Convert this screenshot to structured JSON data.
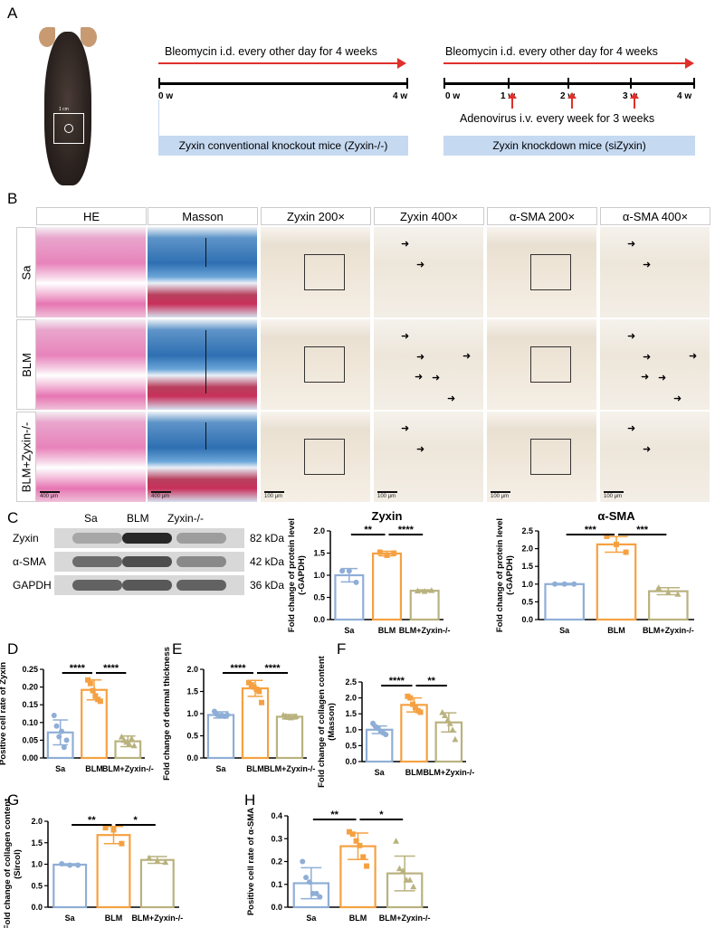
{
  "panels": {
    "a": "A",
    "b": "B",
    "c": "C",
    "d": "D",
    "e": "E",
    "f": "F",
    "g": "G",
    "h": "H"
  },
  "panel_a": {
    "photo_scale": "1 cm",
    "left": {
      "arrow_text": "Bleomycin i.d. every other day for 4 weeks",
      "weeks": [
        "0 w",
        "4 w"
      ],
      "box": "Zyxin conventional knockout mice (Zyxin-/-)"
    },
    "right": {
      "arrow_text": "Bleomycin i.d. every other day for 4 weeks",
      "weeks": [
        "0 w",
        "1 w",
        "2 w",
        "3 w",
        "4 w"
      ],
      "adeno_text": "Adenovirus i.v. every week for 3 weeks",
      "box": "Zyxin  knockdown mice (siZyxin)"
    }
  },
  "panel_b": {
    "columns": [
      "HE",
      "Masson",
      "Zyxin 200×",
      "Zyxin 400×",
      "α-SMA 200×",
      "α-SMA 400×"
    ],
    "rows": [
      "Sa",
      "BLM",
      "BLM+Zyxin-/-"
    ],
    "scale_bars": {
      "he": "400 μm",
      "masson": "400 μm",
      "ihc": "100 μm"
    },
    "colors": {
      "he": "#e783bb",
      "masson": "#2f6fb2",
      "collagen_red": "#c8305a",
      "ihc": "#efe6d8"
    }
  },
  "panel_c_blot": {
    "lanes": [
      "Sa",
      "BLM",
      "Zyxin-/-"
    ],
    "proteins": [
      {
        "name": "Zyxin",
        "kda": "82 kDa"
      },
      {
        "name": "α-SMA",
        "kda": "42 kDa"
      },
      {
        "name": "GAPDH",
        "kda": "36 kDa"
      }
    ]
  },
  "colors": {
    "Sa": "#8faed6",
    "BLM": "#f5a142",
    "BLM+Zyxin-/-": "#b9b27f"
  },
  "chart_data": [
    {
      "id": "C-zyxin",
      "type": "bar",
      "title": "Zyxin",
      "ylabel": [
        "Fold change of protein level",
        "(-GAPDH)"
      ],
      "categories": [
        "Sa",
        "BLM",
        "BLM+Zyxin-/-"
      ],
      "ylim": [
        0,
        2.0
      ],
      "yticks": [
        "0.0",
        "0.5",
        "1.0",
        "1.5",
        "2.0"
      ],
      "means": [
        1.0,
        1.49,
        0.65
      ],
      "sd": [
        0.15,
        0.05,
        0.02
      ],
      "points": [
        [
          1.1,
          1.1,
          0.84
        ],
        [
          1.52,
          1.45,
          1.5
        ],
        [
          0.65,
          0.64,
          0.66
        ]
      ],
      "markers": [
        "circle",
        "square",
        "triangle"
      ],
      "significance": [
        {
          "from": 0,
          "to": 1,
          "label": "**"
        },
        {
          "from": 1,
          "to": 2,
          "label": "****"
        }
      ]
    },
    {
      "id": "C-asma",
      "type": "bar",
      "title": "α-SMA",
      "ylabel": [
        "Fold change of protein level",
        "(-GAPDH)"
      ],
      "categories": [
        "Sa",
        "BLM",
        "BLM+Zyxin-/-"
      ],
      "ylim": [
        0,
        2.5
      ],
      "yticks": [
        "0.0",
        "0.5",
        "1.0",
        "1.5",
        "2.0",
        "2.5"
      ],
      "means": [
        1.0,
        2.12,
        0.8
      ],
      "sd": [
        0.02,
        0.22,
        0.1
      ],
      "points": [
        [
          1.0,
          1.0,
          1.0
        ],
        [
          2.35,
          2.12,
          1.9
        ],
        [
          0.9,
          0.77,
          0.72
        ]
      ],
      "markers": [
        "circle",
        "square",
        "triangle"
      ],
      "significance": [
        {
          "from": 0,
          "to": 1,
          "label": "***"
        },
        {
          "from": 1,
          "to": 2,
          "label": "***"
        }
      ]
    },
    {
      "id": "D",
      "type": "bar",
      "title": "",
      "ylabel": [
        "Positive cell rate of Zyxin"
      ],
      "categories": [
        "Sa",
        "BLM",
        "BLM+Zyxin-/-"
      ],
      "ylim": [
        0,
        0.25
      ],
      "yticks": [
        "0.00",
        "0.05",
        "0.10",
        "0.15",
        "0.20",
        "0.25"
      ],
      "means": [
        0.072,
        0.192,
        0.047
      ],
      "sd": [
        0.035,
        0.028,
        0.015
      ],
      "points": [
        [
          0.12,
          0.09,
          0.06,
          0.075,
          0.03,
          0.05
        ],
        [
          0.22,
          0.21,
          0.19,
          0.175,
          0.165,
          0.16
        ],
        [
          0.06,
          0.05,
          0.045,
          0.04,
          0.055,
          0.035
        ]
      ],
      "markers": [
        "circle",
        "square",
        "triangle"
      ],
      "significance": [
        {
          "from": 0,
          "to": 1,
          "label": "****"
        },
        {
          "from": 1,
          "to": 2,
          "label": "****"
        }
      ]
    },
    {
      "id": "E",
      "type": "bar",
      "title": "",
      "ylabel": [
        "Fold change of dermal thickness"
      ],
      "categories": [
        "Sa",
        "BLM",
        "BLM+Zyxin-/-"
      ],
      "ylim": [
        0,
        2.0
      ],
      "yticks": [
        "0.0",
        "0.5",
        "1.0",
        "1.5",
        "2.0"
      ],
      "means": [
        0.97,
        1.57,
        0.93
      ],
      "sd": [
        0.07,
        0.18,
        0.05
      ],
      "points": [
        [
          1.05,
          0.98,
          0.95,
          0.96,
          0.94,
          0.97
        ],
        [
          1.7,
          1.65,
          1.6,
          1.55,
          1.5,
          1.25
        ],
        [
          0.97,
          0.95,
          0.92,
          0.91,
          0.93,
          0.94
        ]
      ],
      "markers": [
        "circle",
        "square",
        "triangle"
      ],
      "significance": [
        {
          "from": 0,
          "to": 1,
          "label": "****"
        },
        {
          "from": 1,
          "to": 2,
          "label": "****"
        }
      ]
    },
    {
      "id": "F",
      "type": "bar",
      "title": "",
      "ylabel": [
        "Fold change of collagen content",
        "(Masson)"
      ],
      "categories": [
        "Sa",
        "BLM",
        "BLM+Zyxin-/-"
      ],
      "ylim": [
        0,
        2.5
      ],
      "yticks": [
        "0.0",
        "0.5",
        "1.0",
        "1.5",
        "2.0",
        "2.5"
      ],
      "means": [
        1.0,
        1.78,
        1.23
      ],
      "sd": [
        0.12,
        0.22,
        0.3
      ],
      "points": [
        [
          1.2,
          1.1,
          1.05,
          0.95,
          0.9,
          0.85
        ],
        [
          2.05,
          2.0,
          1.8,
          1.7,
          1.6,
          1.55
        ],
        [
          1.55,
          1.45,
          1.3,
          1.2,
          1.0,
          0.7
        ]
      ],
      "markers": [
        "circle",
        "square",
        "triangle"
      ],
      "significance": [
        {
          "from": 0,
          "to": 1,
          "label": "****"
        },
        {
          "from": 1,
          "to": 2,
          "label": "**"
        }
      ]
    },
    {
      "id": "G",
      "type": "bar",
      "title": "",
      "ylabel": [
        "Fold change of collagen content",
        "(Sircol)"
      ],
      "categories": [
        "Sa",
        "BLM",
        "BLM+Zyxin-/-"
      ],
      "ylim": [
        0,
        2.0
      ],
      "yticks": [
        "0.0",
        "0.5",
        "1.0",
        "1.5",
        "2.0"
      ],
      "means": [
        0.99,
        1.68,
        1.1
      ],
      "sd": [
        0.02,
        0.2,
        0.08
      ],
      "points": [
        [
          1.01,
          0.98,
          0.98
        ],
        [
          1.85,
          1.8,
          1.48
        ],
        [
          1.15,
          1.08,
          1.05
        ]
      ],
      "markers": [
        "circle",
        "square",
        "triangle"
      ],
      "significance": [
        {
          "from": 0,
          "to": 1,
          "label": "**"
        },
        {
          "from": 1,
          "to": 2,
          "label": "*"
        }
      ]
    },
    {
      "id": "H",
      "type": "bar",
      "title": "",
      "ylabel": [
        "Positive cell rate of α-SMA"
      ],
      "categories": [
        "Sa",
        "BLM",
        "BLM+Zyxin-/-"
      ],
      "ylim": [
        0,
        0.4
      ],
      "yticks": [
        "0.0",
        "0.1",
        "0.2",
        "0.3",
        "0.4"
      ],
      "means": [
        0.105,
        0.267,
        0.148
      ],
      "sd": [
        0.068,
        0.058,
        0.076
      ],
      "points": [
        [
          0.2,
          0.13,
          0.11,
          0.06,
          0.06,
          0.045
        ],
        [
          0.33,
          0.32,
          0.29,
          0.27,
          0.22,
          0.18
        ],
        [
          0.29,
          0.17,
          0.16,
          0.12,
          0.12,
          0.09
        ]
      ],
      "markers": [
        "circle",
        "square",
        "triangle"
      ],
      "significance": [
        {
          "from": 0,
          "to": 1,
          "label": "**"
        },
        {
          "from": 1,
          "to": 2,
          "label": "*"
        }
      ]
    }
  ]
}
